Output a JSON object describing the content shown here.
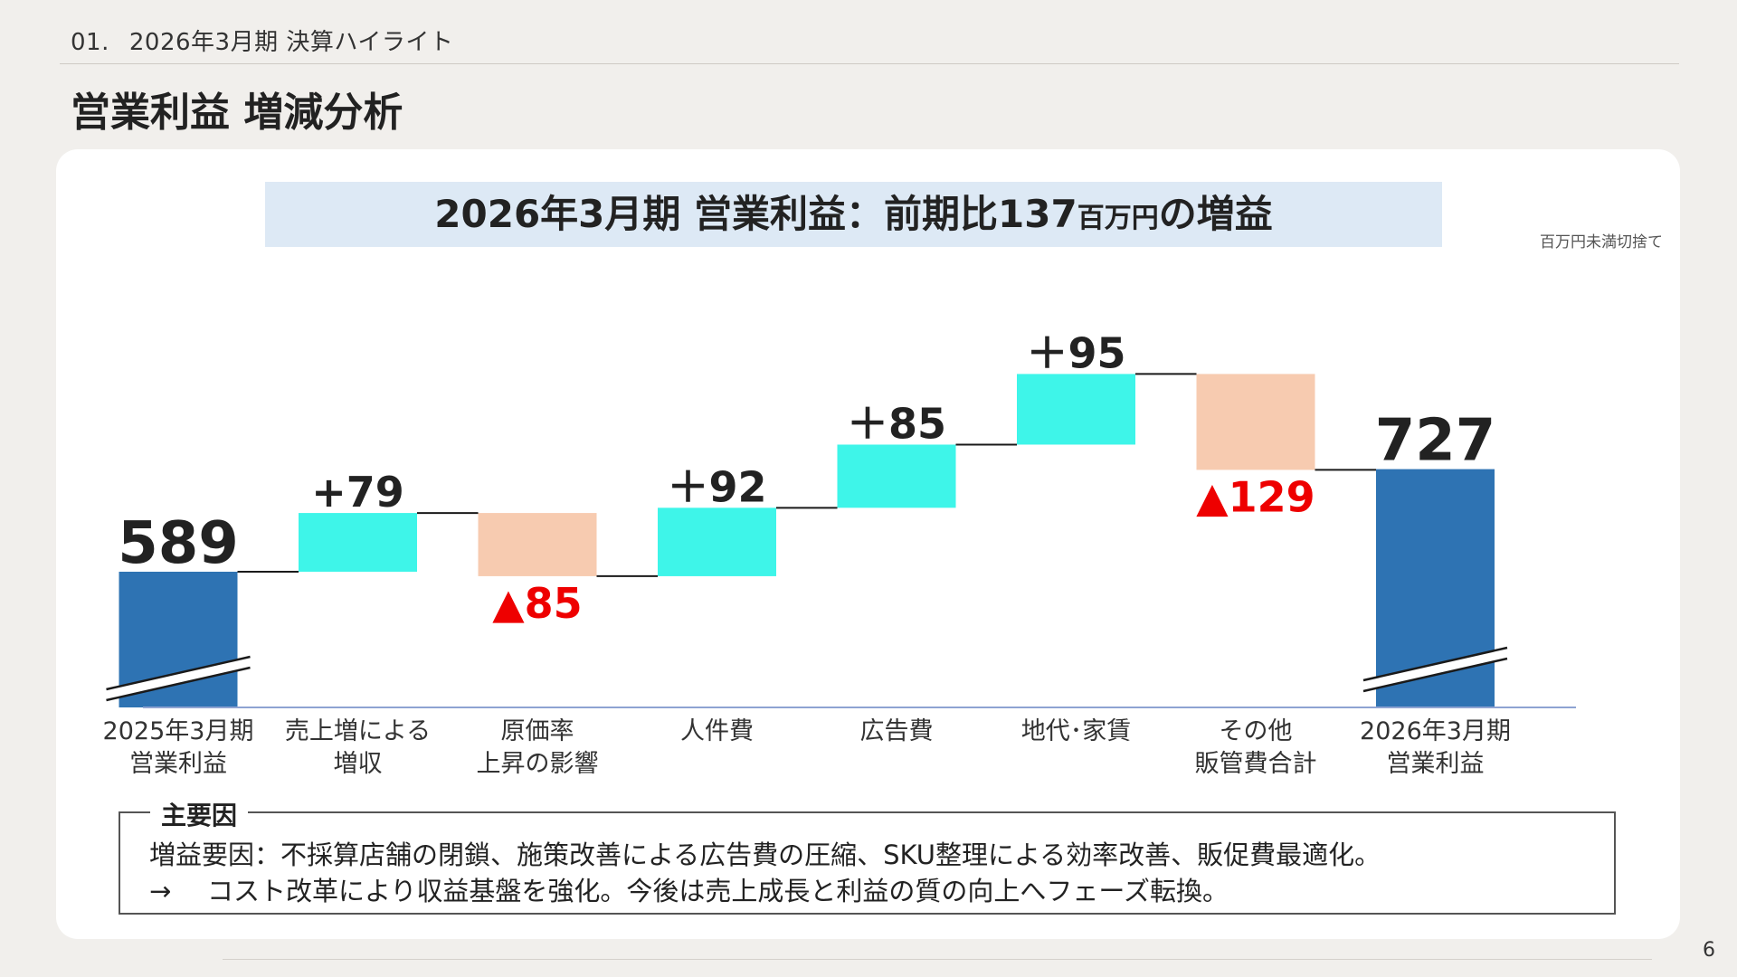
{
  "header": {
    "section_number": "01.",
    "section_label": "2026年3月期 決算ハイライト",
    "title": "営業利益 増減分析"
  },
  "banner": {
    "text_main": "2026年3月期 営業利益：前期比137",
    "text_unit": "百万円",
    "text_tail": "の増益"
  },
  "unit_note": "百万円未満切捨て",
  "colors": {
    "base": "#2e73b3",
    "increase": "#3ef5e9",
    "decrease": "#f7cbb0",
    "decrease_label": "#ee0000",
    "axis": "#8ea3d2"
  },
  "chart_data": {
    "type": "waterfall",
    "axis_broken": true,
    "categories": [
      [
        "2025年3月期",
        "営業利益"
      ],
      [
        "売上増による",
        "増収"
      ],
      [
        "原価率",
        "上昇の影響"
      ],
      [
        "人件費"
      ],
      [
        "広告費"
      ],
      [
        "地代･家賃"
      ],
      [
        "その他",
        "販管費合計"
      ],
      [
        "2026年3月期",
        "営業利益"
      ]
    ],
    "steps": [
      {
        "kind": "total",
        "value": 589,
        "label": "589"
      },
      {
        "kind": "increase",
        "value": 79,
        "label": "+79"
      },
      {
        "kind": "decrease",
        "value": -85,
        "label": "▲85"
      },
      {
        "kind": "increase",
        "value": 92,
        "label": "＋92"
      },
      {
        "kind": "increase",
        "value": 85,
        "label": "＋85"
      },
      {
        "kind": "increase",
        "value": 95,
        "label": "＋95"
      },
      {
        "kind": "decrease",
        "value": -129,
        "label": "▲129"
      },
      {
        "kind": "total",
        "value": 727,
        "label": "727"
      }
    ]
  },
  "factors": {
    "title": "主要因",
    "line1": "増益要因：不採算店舗の閉鎖、施策改善による広告費の圧縮、SKU整理による効率改善、販促費最適化。",
    "line2_arrow": "→",
    "line2": "コスト改革により収益基盤を強化。今後は売上成長と利益の質の向上へフェーズ転換。"
  },
  "page_number": "6"
}
